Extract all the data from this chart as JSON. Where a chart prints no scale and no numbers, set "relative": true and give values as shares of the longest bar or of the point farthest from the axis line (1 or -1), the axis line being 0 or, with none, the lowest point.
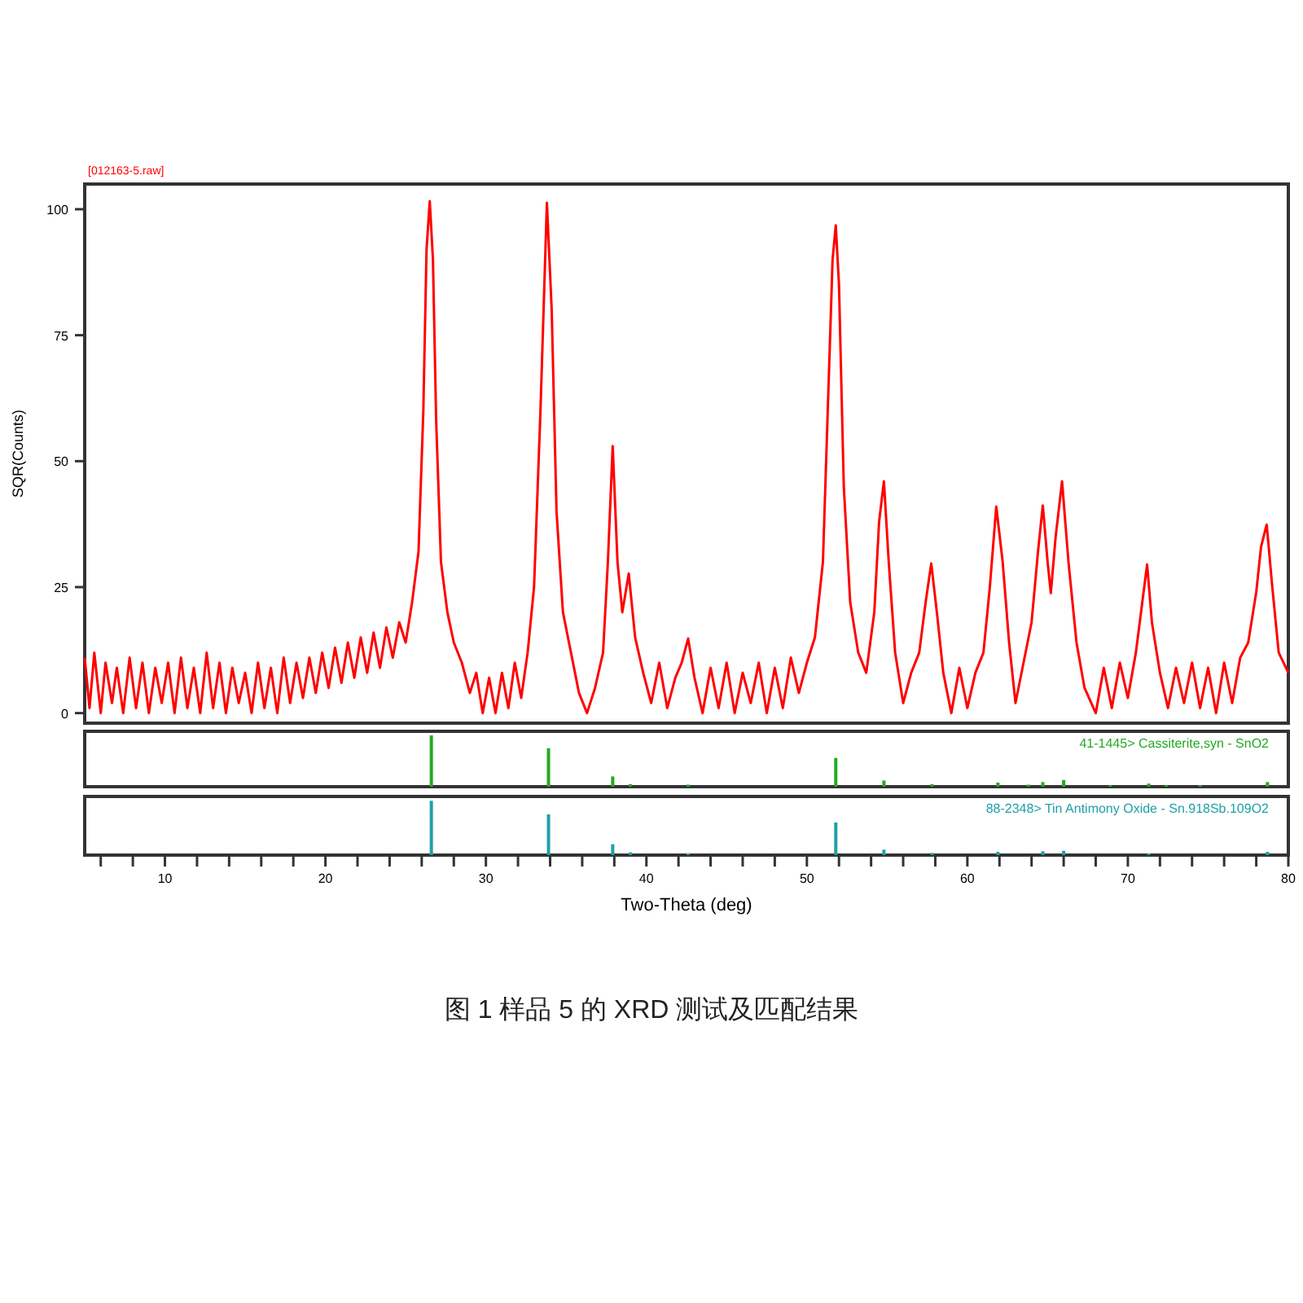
{
  "chart_data": [
    {
      "type": "line",
      "ylabel": "SQR(Counts)",
      "annotations": [
        "[012163-5.raw]"
      ],
      "xlim": [
        5,
        80
      ],
      "ylim": [
        -2,
        105
      ],
      "yticks": [
        0,
        25,
        50,
        75,
        100
      ],
      "tick_labels": "y",
      "x": [
        5,
        5.3,
        5.6,
        6,
        6.3,
        6.7,
        7,
        7.4,
        7.8,
        8.2,
        8.6,
        9,
        9.4,
        9.8,
        10.2,
        10.6,
        11,
        11.4,
        11.8,
        12.2,
        12.6,
        13,
        13.4,
        13.8,
        14.2,
        14.6,
        15,
        15.4,
        15.8,
        16.2,
        16.6,
        17,
        17.4,
        17.8,
        18.2,
        18.6,
        19,
        19.4,
        19.8,
        20.2,
        20.6,
        21,
        21.4,
        21.8,
        22.2,
        22.6,
        23,
        23.4,
        23.8,
        24.2,
        24.6,
        25,
        25.4,
        25.8,
        26.1,
        26.3,
        26.5,
        26.7,
        26.9,
        27.2,
        27.6,
        28,
        28.5,
        29,
        29.4,
        29.8,
        30.2,
        30.6,
        31,
        31.4,
        31.8,
        32.2,
        32.6,
        33,
        33.4,
        33.8,
        34.1,
        34.4,
        34.8,
        35.3,
        35.8,
        36.3,
        36.8,
        37.3,
        37.6,
        37.9,
        38.2,
        38.5,
        38.9,
        39.3,
        39.8,
        40.3,
        40.8,
        41.3,
        41.8,
        42.2,
        42.6,
        43,
        43.5,
        44,
        44.5,
        45,
        45.5,
        46,
        46.5,
        47,
        47.5,
        48,
        48.5,
        49,
        49.5,
        50,
        50.5,
        51,
        51.3,
        51.6,
        51.8,
        52,
        52.3,
        52.7,
        53.2,
        53.7,
        54.2,
        54.5,
        54.8,
        55.1,
        55.5,
        56,
        56.5,
        57,
        57.4,
        57.75,
        58.1,
        58.5,
        59,
        59.5,
        60,
        60.5,
        61,
        61.4,
        61.8,
        62.2,
        62.6,
        63,
        63.5,
        64,
        64.4,
        64.7,
        65,
        65.2,
        65.5,
        65.9,
        66.3,
        66.8,
        67.3,
        68,
        68.5,
        69,
        69.5,
        70,
        70.5,
        70.9,
        71.2,
        71.5,
        72,
        72.5,
        73,
        73.5,
        74,
        74.5,
        75,
        75.5,
        76,
        76.5,
        77,
        77.5,
        78,
        78.3,
        78.65,
        79,
        79.4,
        80
      ],
      "series": [
        {
          "color": "#ff0000",
          "values": [
            11,
            1,
            12,
            0,
            10,
            2,
            9,
            0,
            11,
            1,
            10,
            0,
            9,
            2,
            10,
            0,
            11,
            1,
            9,
            0,
            12,
            1,
            10,
            0,
            9,
            2,
            8,
            0,
            10,
            1,
            9,
            0,
            11,
            2,
            10,
            3,
            11,
            4,
            12,
            5,
            13,
            6,
            14,
            7,
            15,
            8,
            16,
            9,
            17,
            11,
            18,
            14,
            22,
            32,
            60,
            92,
            101.6,
            90,
            58,
            30,
            20,
            14,
            10,
            4,
            8,
            0,
            7,
            0,
            8,
            1,
            10,
            3,
            12,
            25,
            60,
            101.3,
            80,
            40,
            20,
            12,
            4,
            0,
            5,
            12,
            30,
            53,
            30,
            20,
            27.7,
            15,
            8,
            2,
            10,
            1,
            7,
            10,
            14.8,
            7,
            0,
            9,
            1,
            10,
            0,
            8,
            2,
            10,
            0,
            9,
            1,
            11,
            4,
            10,
            15,
            30,
            60,
            90,
            96.8,
            85,
            45,
            22,
            12,
            8,
            20,
            38,
            46,
            30,
            12,
            2,
            8,
            12,
            22,
            29.7,
            20,
            8,
            0,
            9,
            1,
            8,
            12,
            25,
            41,
            30,
            14,
            2,
            10,
            18,
            32,
            41.2,
            30,
            23.8,
            35,
            46,
            30,
            14,
            5,
            0,
            9,
            1,
            10,
            3,
            12,
            22,
            29.5,
            18,
            8,
            1,
            9,
            2,
            10,
            1,
            9,
            0,
            10,
            2,
            11,
            14,
            24,
            33,
            37.4,
            25,
            12,
            8
          ]
        }
      ]
    },
    {
      "type": "bar",
      "relative": true,
      "xlim": [
        5,
        80
      ],
      "tick_labels": false,
      "x": [
        26.6,
        33.9,
        37.9,
        39.0,
        42.6,
        51.8,
        54.8,
        57.8,
        61.9,
        63.8,
        64.7,
        66.0,
        68.9,
        71.3,
        72.4,
        74.5,
        78.7
      ],
      "series": [
        {
          "name": "41-1445> Cassiterite,syn - SnO2",
          "color": "#22aa22",
          "values": [
            1,
            0.75,
            0.2,
            0.05,
            0.04,
            0.56,
            0.12,
            0.05,
            0.08,
            0.04,
            0.09,
            0.13,
            0.03,
            0.06,
            0.03,
            0.03,
            0.09
          ]
        }
      ]
    },
    {
      "type": "bar",
      "relative": true,
      "xlim": [
        5,
        80
      ],
      "tick_labels": "x",
      "xlabel": "Two-Theta (deg)",
      "xticks": [
        {
          "value": 6,
          "label": null
        },
        {
          "value": 8,
          "label": null
        },
        10,
        {
          "value": 12,
          "label": null
        },
        {
          "value": 14,
          "label": null
        },
        {
          "value": 16,
          "label": null
        },
        {
          "value": 18,
          "label": null
        },
        20,
        {
          "value": 22,
          "label": null
        },
        {
          "value": 24,
          "label": null
        },
        {
          "value": 26,
          "label": null
        },
        {
          "value": 28,
          "label": null
        },
        30,
        {
          "value": 32,
          "label": null
        },
        {
          "value": 34,
          "label": null
        },
        {
          "value": 36,
          "label": null
        },
        {
          "value": 38,
          "label": null
        },
        40,
        {
          "value": 42,
          "label": null
        },
        {
          "value": 44,
          "label": null
        },
        {
          "value": 46,
          "label": null
        },
        {
          "value": 48,
          "label": null
        },
        50,
        {
          "value": 52,
          "label": null
        },
        {
          "value": 54,
          "label": null
        },
        {
          "value": 56,
          "label": null
        },
        {
          "value": 58,
          "label": null
        },
        60,
        {
          "value": 62,
          "label": null
        },
        {
          "value": 64,
          "label": null
        },
        {
          "value": 66,
          "label": null
        },
        {
          "value": 68,
          "label": null
        },
        70,
        {
          "value": 72,
          "label": null
        },
        {
          "value": 74,
          "label": null
        },
        {
          "value": 76,
          "label": null
        },
        {
          "value": 78,
          "label": null
        },
        80
      ],
      "annotations": [
        "图 1 样品 5 的 XRD 测试及匹配结果"
      ],
      "x": [
        26.6,
        33.9,
        37.9,
        39.0,
        42.6,
        51.8,
        54.8,
        57.8,
        61.9,
        64.7,
        66.0,
        71.3,
        78.7
      ],
      "series": [
        {
          "name": "88-2348> Tin Antimony Oxide - Sn.918Sb.109O2",
          "color": "#20a0a8",
          "values": [
            1,
            0.75,
            0.2,
            0.05,
            0.03,
            0.6,
            0.1,
            0.04,
            0.06,
            0.07,
            0.08,
            0.03,
            0.06
          ]
        }
      ]
    }
  ]
}
